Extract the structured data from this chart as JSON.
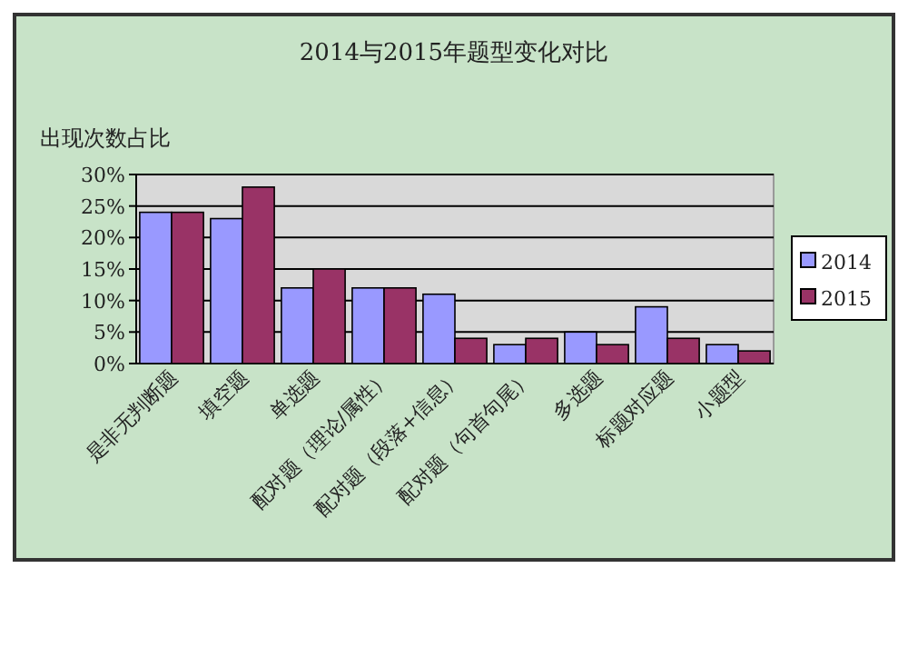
{
  "chart_data": {
    "type": "bar",
    "title": "2014与2015年题型变化对比",
    "ylabel": "出现次数占比",
    "categories": [
      "是非无判断题",
      "填空题",
      "单选题",
      "配对题（理论/属性）",
      "配对题（段落+信息）",
      "配对题（句首句尾）",
      "多选题",
      "标题对应题",
      "小题型"
    ],
    "series": [
      {
        "name": "2014",
        "color": "#9999ff",
        "values": [
          24,
          23,
          12,
          12,
          11,
          3,
          5,
          9,
          3
        ]
      },
      {
        "name": "2015",
        "color": "#993366",
        "values": [
          24,
          28,
          15,
          12,
          4,
          4,
          3,
          4,
          2
        ]
      }
    ],
    "ylim": [
      0,
      30
    ],
    "yticks": [
      {
        "value": 0,
        "label": "0%"
      },
      {
        "value": 5,
        "label": "5%"
      },
      {
        "value": 10,
        "label": "10%"
      },
      {
        "value": 15,
        "label": "15%"
      },
      {
        "value": 20,
        "label": "20%"
      },
      {
        "value": 25,
        "label": "25%"
      },
      {
        "value": 30,
        "label": "30%"
      }
    ],
    "grid": "y",
    "legend": "right"
  }
}
